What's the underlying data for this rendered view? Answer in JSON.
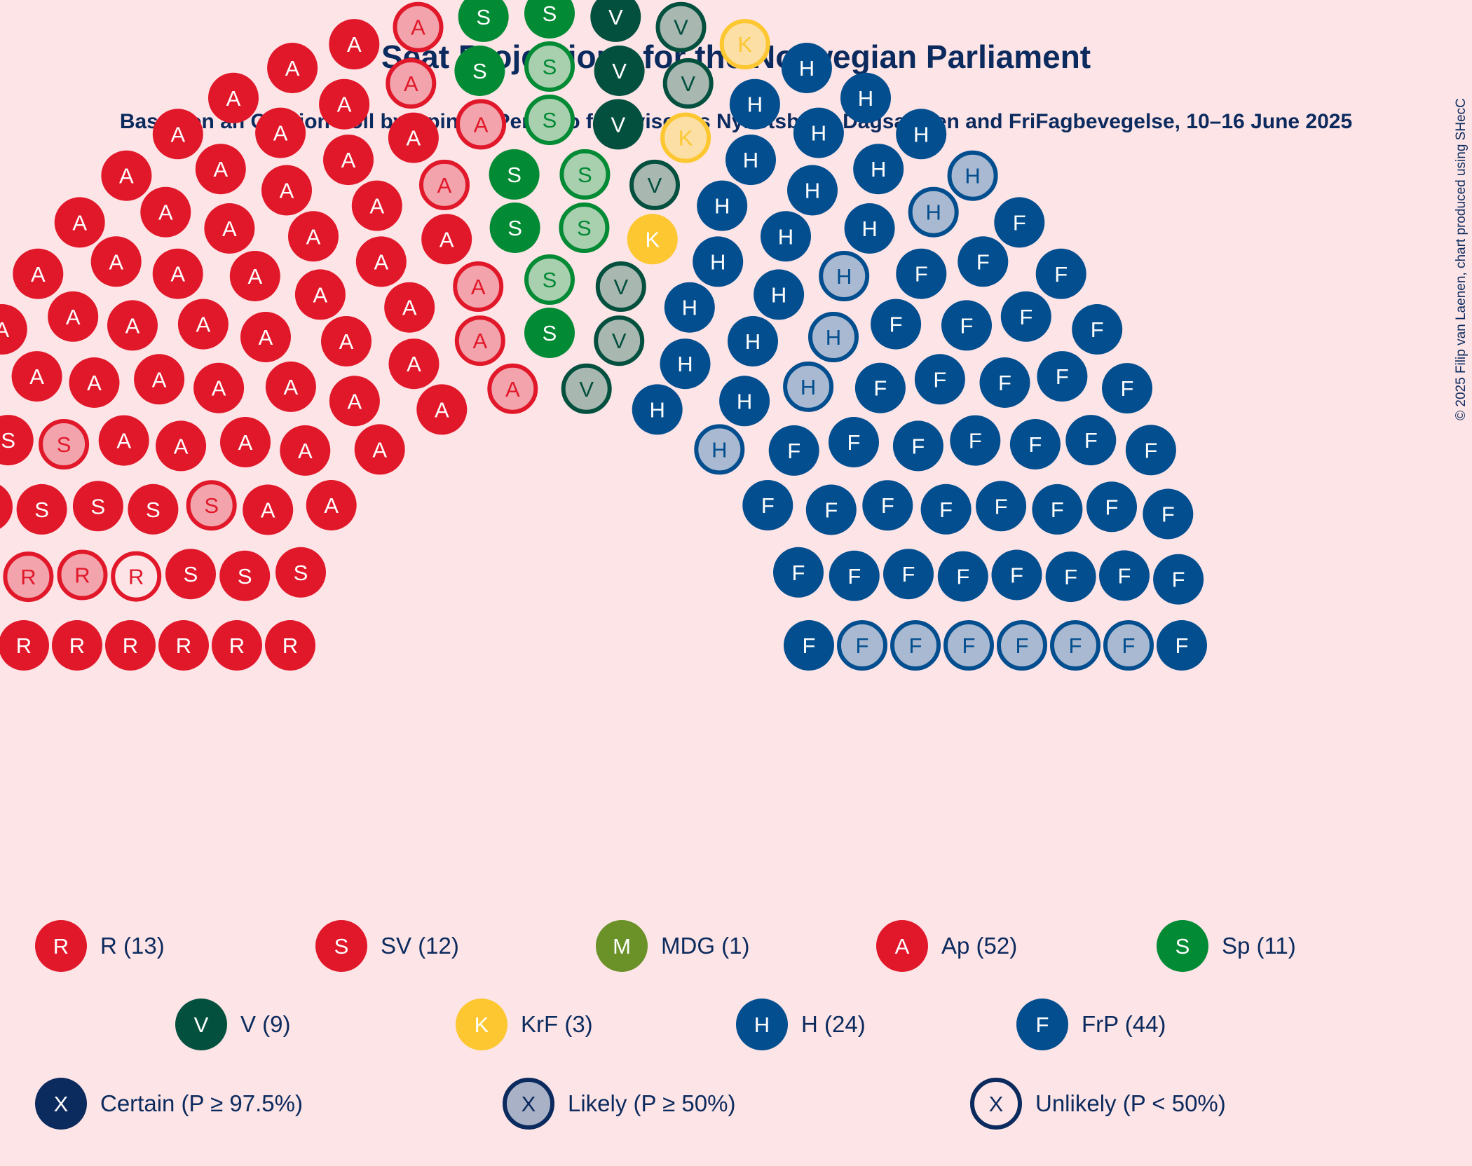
{
  "chart_data": {
    "type": "parliament",
    "title": "Seat Projections for the Norwegian Parliament",
    "subtitle": "Based on an Opinion Poll by Opinion Perduco for Avisenes Nyhetsbyrå, Dagsavisen and FriFagbevegelse, 10–16 June 2025",
    "copyright": "© 2025 Filip van Laenen, chart produced using SHecC",
    "total_seats": 169,
    "parties": [
      {
        "letter": "R",
        "name": "R",
        "seats": 13,
        "certain": 9,
        "likely": 3,
        "unlikely": 1,
        "color": "#e1182a",
        "text_color": "#ffffff",
        "light": "#f2a3ab"
      },
      {
        "letter": "S",
        "name": "SV",
        "seats": 12,
        "certain": 10,
        "likely": 2,
        "unlikely": 0,
        "color": "#e1182a",
        "text_color": "#ffffff",
        "light": "#f2a3ab"
      },
      {
        "letter": "M",
        "name": "MDG",
        "seats": 1,
        "certain": 0,
        "likely": 1,
        "unlikely": 0,
        "color": "#6a9229",
        "text_color": "#ffffff",
        "light": "#cfd1a6"
      },
      {
        "letter": "A",
        "name": "Ap",
        "seats": 52,
        "certain": 45,
        "likely": 7,
        "unlikely": 0,
        "color": "#e1182a",
        "text_color": "#ffffff",
        "light": "#f2a3ab"
      },
      {
        "letter": "S",
        "name": "Sp",
        "seats": 11,
        "certain": 6,
        "likely": 5,
        "unlikely": 0,
        "color": "#028a35",
        "text_color": "#ffffff",
        "light": "#a8cfae"
      },
      {
        "letter": "V",
        "name": "V",
        "seats": 9,
        "certain": 3,
        "likely": 6,
        "unlikely": 0,
        "color": "#04503f",
        "text_color": "#ffffff",
        "light": "#a8b8b0"
      },
      {
        "letter": "K",
        "name": "KrF",
        "seats": 3,
        "certain": 1,
        "likely": 2,
        "unlikely": 0,
        "color": "#fdc731",
        "text_color": "#ffffff",
        "light": "#fbdfa5"
      },
      {
        "letter": "H",
        "name": "H",
        "seats": 24,
        "certain": 18,
        "likely": 6,
        "unlikely": 0,
        "color": "#024e8f",
        "text_color": "#ffffff",
        "light": "#a9b9d1"
      },
      {
        "letter": "F",
        "name": "FrP",
        "seats": 44,
        "certain": 38,
        "likely": 6,
        "unlikely": 0,
        "color": "#024e8f",
        "text_color": "#ffffff",
        "light": "#a9b9d1"
      }
    ],
    "legend_parties": [
      {
        "letter": "R",
        "label": "R (13)",
        "color": "#e1182a"
      },
      {
        "letter": "S",
        "label": "SV (12)",
        "color": "#e1182a"
      },
      {
        "letter": "M",
        "label": "MDG (1)",
        "color": "#6a9229"
      },
      {
        "letter": "A",
        "label": "Ap (52)",
        "color": "#e1182a"
      },
      {
        "letter": "S",
        "label": "Sp (11)",
        "color": "#028a35"
      },
      {
        "letter": "V",
        "label": "V (9)",
        "color": "#04503f"
      },
      {
        "letter": "K",
        "label": "KrF (3)",
        "color": "#fdc731"
      },
      {
        "letter": "H",
        "label": "H (24)",
        "color": "#024e8f"
      },
      {
        "letter": "F",
        "label": "FrP (44)",
        "color": "#024e8f"
      }
    ],
    "legend_certainty": [
      {
        "letter": "X",
        "label": "Certain (P ≥ 97.5%)",
        "kind": "certain"
      },
      {
        "letter": "X",
        "label": "Likely (P ≥ 50%)",
        "kind": "likely"
      },
      {
        "letter": "X",
        "label": "Unlikely (P < 50%)",
        "kind": "unlikely"
      }
    ],
    "colors": {
      "background": "#fde4e6",
      "text": "#0b2a5e",
      "certainty_marker": "#0b2a5e",
      "certainty_likely_fill": "#a9b1c6"
    }
  }
}
